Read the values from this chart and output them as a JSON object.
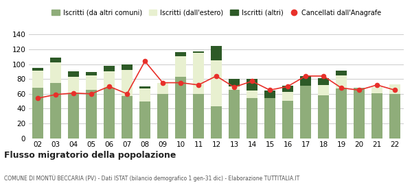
{
  "years": [
    "02",
    "03",
    "04",
    "05",
    "06",
    "07",
    "08",
    "09",
    "10",
    "11",
    "12",
    "13",
    "14",
    "15",
    "16",
    "17",
    "18",
    "19",
    "20",
    "21",
    "22"
  ],
  "iscritti_comuni": [
    68,
    75,
    61,
    65,
    68,
    57,
    50,
    60,
    83,
    60,
    43,
    65,
    54,
    54,
    51,
    71,
    58,
    67,
    68,
    61,
    60
  ],
  "iscritti_estero": [
    23,
    27,
    22,
    20,
    22,
    35,
    17,
    15,
    28,
    55,
    62,
    5,
    10,
    0,
    12,
    0,
    14,
    18,
    0,
    8,
    13
  ],
  "iscritti_altri": [
    4,
    7,
    7,
    4,
    8,
    8,
    3,
    0,
    5,
    2,
    20,
    10,
    16,
    10,
    8,
    13,
    9,
    6,
    0,
    0,
    0
  ],
  "cancellati": [
    54,
    59,
    61,
    60,
    70,
    60,
    104,
    75,
    75,
    72,
    84,
    69,
    77,
    65,
    70,
    84,
    84,
    68,
    65,
    72,
    65
  ],
  "color_comuni": "#8fad7a",
  "color_estero": "#e8f0d0",
  "color_altri": "#2d5a27",
  "color_cancellati": "#e8302a",
  "ylim": [
    0,
    140
  ],
  "yticks": [
    0,
    20,
    40,
    60,
    80,
    100,
    120,
    140
  ],
  "legend_labels": [
    "Iscritti (da altri comuni)",
    "Iscritti (dall'estero)",
    "Iscritti (altri)",
    "Cancellati dall'Anagrafe"
  ],
  "title": "Flusso migratorio della popolazione",
  "subtitle": "COMUNE DI MONTÙ BECCARIA (PV) - Dati ISTAT (bilancio demografico 1 gen-31 dic) - Elaborazione TUTTITALIA.IT",
  "bg_color": "#ffffff",
  "grid_color": "#cccccc"
}
